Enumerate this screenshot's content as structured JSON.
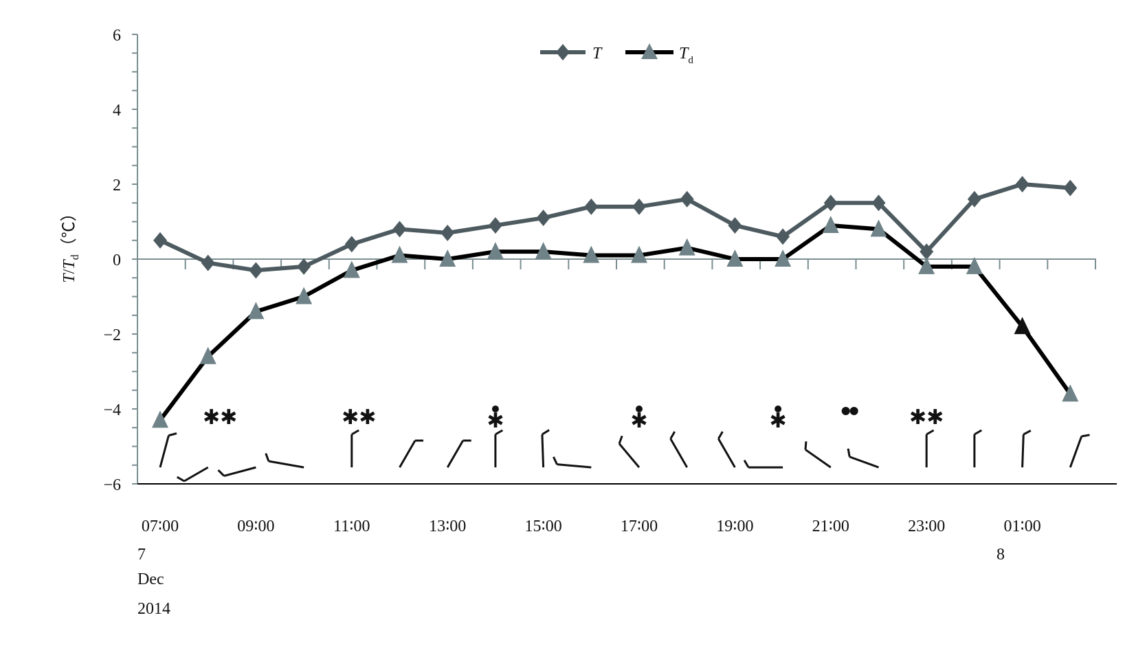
{
  "chart_data": {
    "type": "line",
    "title": "",
    "ylabel": "T/Td (℃)",
    "ylabel_parts": {
      "t": "T",
      "slash": "/",
      "td": "T",
      "td_sub": "d",
      "unit": "（℃）"
    },
    "xlabel": "",
    "ylim": [
      -6,
      6
    ],
    "yticks": [
      "6",
      "4",
      "2",
      "0",
      "−2",
      "−4",
      "−6"
    ],
    "ytick_values": [
      6,
      4,
      2,
      0,
      -2,
      -4,
      -6
    ],
    "x": [
      "07:00",
      "08:00",
      "09:00",
      "10:00",
      "11:00",
      "12:00",
      "13:00",
      "14:00",
      "15:00",
      "16:00",
      "17:00",
      "18:00",
      "19:00",
      "20:00",
      "21:00",
      "22:00",
      "23:00",
      "00:00",
      "01:00",
      "02:00"
    ],
    "xtick_labels": [
      "07:00",
      "09:00",
      "11:00",
      "13:00",
      "15:00",
      "17:00",
      "19:00",
      "21:00",
      "23:00",
      "01:00"
    ],
    "date_labels": {
      "day1": "7",
      "month": "Dec",
      "year": "2014",
      "day2": "8"
    },
    "grid": false,
    "legend_position": "top-center",
    "series": [
      {
        "name": "T",
        "name_sub": "",
        "marker": "diamond",
        "color": "#4d5b60",
        "values": [
          0.5,
          -0.1,
          -0.3,
          -0.2,
          0.4,
          0.8,
          0.7,
          0.9,
          1.1,
          1.4,
          1.4,
          1.6,
          0.9,
          0.6,
          1.5,
          1.5,
          0.2,
          1.6,
          2.0,
          1.9
        ]
      },
      {
        "name": "T",
        "name_sub": "d",
        "marker": "triangle",
        "color": "#000000",
        "marker_color": "#6e8287",
        "values": [
          -4.3,
          -2.6,
          -1.4,
          -1.0,
          -0.3,
          0.1,
          0.0,
          0.2,
          0.2,
          0.1,
          0.1,
          0.3,
          0.0,
          0.0,
          0.9,
          0.8,
          -0.2,
          -0.2,
          -1.8,
          -3.6
        ]
      }
    ],
    "weather_symbols": [
      {
        "time_hours": 1.25,
        "symbol": "snow",
        "glyph": "✱✱"
      },
      {
        "time_hours": 4.15,
        "symbol": "snow",
        "glyph": "✱✱"
      },
      {
        "time_hours": 7.0,
        "symbol": "rain-snow",
        "glyph": "●✱"
      },
      {
        "time_hours": 10.0,
        "symbol": "rain-snow",
        "glyph": "●✱"
      },
      {
        "time_hours": 12.9,
        "symbol": "rain-snow",
        "glyph": "●✱"
      },
      {
        "time_hours": 14.4,
        "symbol": "rain",
        "glyph": "●●"
      },
      {
        "time_hours": 16.0,
        "symbol": "snow",
        "glyph": "✱✱"
      }
    ]
  }
}
